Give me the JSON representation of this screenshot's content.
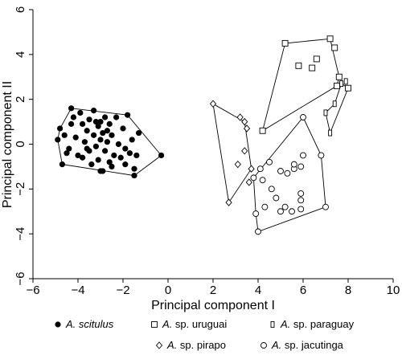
{
  "chart_data": {
    "type": "scatter",
    "xlabel": "Principal component I",
    "ylabel": "Principal component II",
    "xlim": [
      -6,
      10
    ],
    "ylim": [
      -6,
      6
    ],
    "xticks": [
      -6,
      -4,
      -2,
      0,
      2,
      4,
      6,
      8,
      10
    ],
    "yticks": [
      -6,
      -4,
      -2,
      0,
      2,
      4,
      6
    ],
    "grid": false,
    "legend_position": "bottom",
    "series": [
      {
        "name_italic": "A. scitulus",
        "name_rest": "",
        "marker": "filled-circle",
        "points": [
          [
            -4.8,
            0.7
          ],
          [
            -4.6,
            0.4
          ],
          [
            -4.7,
            -0.9
          ],
          [
            -4.4,
            -0.2
          ],
          [
            -4.3,
            1.6
          ],
          [
            -4.2,
            1.2
          ],
          [
            -4.1,
            0.3
          ],
          [
            -4.0,
            -0.5
          ],
          [
            -3.9,
            1.4
          ],
          [
            -3.8,
            0.9
          ],
          [
            -3.8,
            -0.6
          ],
          [
            -3.7,
            0.1
          ],
          [
            -3.6,
            0.6
          ],
          [
            -3.5,
            -0.3
          ],
          [
            -3.5,
            1.1
          ],
          [
            -3.4,
            -0.9
          ],
          [
            -3.3,
            0.4
          ],
          [
            -3.3,
            1.5
          ],
          [
            -3.2,
            -0.1
          ],
          [
            -3.1,
            0.8
          ],
          [
            -3.1,
            -0.7
          ],
          [
            -3.0,
            1.0
          ],
          [
            -3.0,
            0.2
          ],
          [
            -2.9,
            -1.2
          ],
          [
            -2.9,
            0.5
          ],
          [
            -2.8,
            1.2
          ],
          [
            -2.8,
            -0.3
          ],
          [
            -2.7,
            0.1
          ],
          [
            -2.6,
            0.9
          ],
          [
            -2.6,
            -0.8
          ],
          [
            -2.5,
            0.4
          ],
          [
            -2.4,
            -0.5
          ],
          [
            -2.3,
            1.2
          ],
          [
            -2.2,
            0.0
          ],
          [
            -2.1,
            -0.6
          ],
          [
            -2.0,
            0.7
          ],
          [
            -1.9,
            -0.2
          ],
          [
            -1.8,
            1.3
          ],
          [
            -1.7,
            -0.4
          ],
          [
            -1.6,
            0.2
          ],
          [
            -1.5,
            -1.1
          ],
          [
            -1.4,
            -0.5
          ],
          [
            -1.3,
            0.5
          ],
          [
            -0.3,
            -0.5
          ],
          [
            -4.9,
            0.2
          ],
          [
            -3.6,
            -0.2
          ],
          [
            -2.5,
            -1.0
          ],
          [
            -3.2,
            1.0
          ],
          [
            -4.5,
            -0.4
          ],
          [
            -4.3,
            0.9
          ],
          [
            -3.0,
            -1.2
          ],
          [
            -1.5,
            -1.4
          ],
          [
            -1.9,
            -0.9
          ],
          [
            -2.7,
            0.6
          ]
        ]
      },
      {
        "name_italic": "A.",
        "name_rest": " sp. uruguai",
        "marker": "open-square",
        "points": [
          [
            5.2,
            4.5
          ],
          [
            7.2,
            4.7
          ],
          [
            7.4,
            4.3
          ],
          [
            6.6,
            3.8
          ],
          [
            5.8,
            3.5
          ],
          [
            6.4,
            3.4
          ],
          [
            7.6,
            3.0
          ],
          [
            7.5,
            2.6
          ],
          [
            8.0,
            2.5
          ],
          [
            4.2,
            0.6
          ]
        ]
      },
      {
        "name_italic": "A.",
        "name_rest": " sp. paraguay",
        "marker": "half-square",
        "points": [
          [
            7.7,
            2.7
          ],
          [
            7.9,
            2.8
          ],
          [
            7.4,
            1.8
          ],
          [
            7.0,
            1.4
          ],
          [
            7.2,
            0.5
          ]
        ]
      },
      {
        "name_italic": "A.",
        "name_rest": " sp. pirapo",
        "marker": "open-diamond",
        "points": [
          [
            2.0,
            1.8
          ],
          [
            2.7,
            -2.6
          ],
          [
            3.2,
            1.2
          ],
          [
            3.5,
            0.7
          ],
          [
            3.4,
            -0.3
          ],
          [
            3.6,
            -1.7
          ],
          [
            3.7,
            -1.1
          ],
          [
            3.1,
            -0.9
          ],
          [
            3.4,
            1.0
          ]
        ]
      },
      {
        "name_italic": "A.",
        "name_rest": " sp. jacutinga",
        "marker": "open-circle",
        "points": [
          [
            6.0,
            1.2
          ],
          [
            6.8,
            -0.5
          ],
          [
            7.0,
            -2.8
          ],
          [
            4.0,
            -3.9
          ],
          [
            3.9,
            -3.1
          ],
          [
            4.1,
            -1.1
          ],
          [
            3.8,
            -1.5
          ],
          [
            4.2,
            -1.6
          ],
          [
            4.5,
            -0.8
          ],
          [
            5.0,
            -1.2
          ],
          [
            5.3,
            -1.3
          ],
          [
            5.6,
            -1.1
          ],
          [
            5.9,
            -1.0
          ],
          [
            6.0,
            -0.5
          ],
          [
            5.2,
            -2.8
          ],
          [
            5.5,
            -3.0
          ],
          [
            5.9,
            -2.5
          ],
          [
            5.9,
            -2.2
          ],
          [
            4.3,
            -2.8
          ],
          [
            4.8,
            -2.4
          ],
          [
            5.0,
            -3.0
          ],
          [
            4.6,
            -2.0
          ],
          [
            5.9,
            -2.9
          ],
          [
            5.6,
            -0.9
          ]
        ]
      }
    ],
    "hulls": [
      [
        [
          -4.3,
          1.6
        ],
        [
          -1.8,
          1.3
        ],
        [
          -0.3,
          -0.5
        ],
        [
          -1.5,
          -1.4
        ],
        [
          -4.7,
          -0.9
        ],
        [
          -4.9,
          0.2
        ],
        [
          -4.8,
          0.7
        ]
      ],
      [
        [
          4.2,
          0.6
        ],
        [
          5.2,
          4.5
        ],
        [
          7.2,
          4.7
        ],
        [
          7.6,
          3.0
        ],
        [
          7.5,
          2.6
        ]
      ],
      [
        [
          7.4,
          1.8
        ],
        [
          7.7,
          2.7
        ],
        [
          8.0,
          2.5
        ],
        [
          7.2,
          0.5
        ],
        [
          7.0,
          1.4
        ]
      ],
      [
        [
          2.0,
          1.8
        ],
        [
          3.4,
          1.0
        ],
        [
          3.7,
          -1.1
        ],
        [
          2.7,
          -2.6
        ]
      ],
      [
        [
          3.8,
          -1.5
        ],
        [
          6.0,
          1.2
        ],
        [
          6.8,
          -0.5
        ],
        [
          7.0,
          -2.8
        ],
        [
          4.0,
          -3.9
        ],
        [
          3.9,
          -3.1
        ]
      ]
    ]
  }
}
